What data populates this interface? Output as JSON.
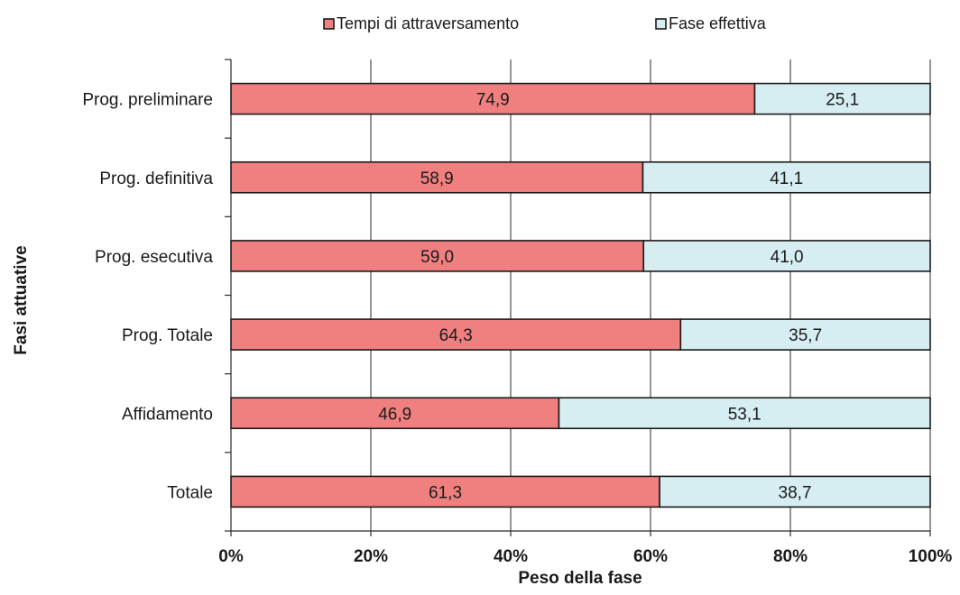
{
  "chart_data": {
    "type": "bar",
    "orientation": "horizontal",
    "stacked": true,
    "title": "",
    "xlabel": "Peso della fase",
    "ylabel": "Fasi attuative",
    "categories": [
      "Prog. preliminare",
      "Prog. definitiva",
      "Prog. esecutiva",
      "Prog. Totale",
      "Affidamento",
      "Totale"
    ],
    "series": [
      {
        "name": "Tempi di attraversamento",
        "color": "#f08080",
        "values": [
          74.9,
          58.9,
          59.0,
          64.3,
          46.9,
          61.3
        ],
        "labels": [
          "74,9",
          "58,9",
          "59,0",
          "64,3",
          "46,9",
          "61,3"
        ]
      },
      {
        "name": "Fase effettiva",
        "color": "#d6eef2",
        "values": [
          25.1,
          41.1,
          41.0,
          35.7,
          53.1,
          38.7
        ],
        "labels": [
          "25,1",
          "41,1",
          "41,0",
          "35,7",
          "53,1",
          "38,7"
        ]
      }
    ],
    "xlim": [
      0,
      100
    ],
    "xticks": [
      0,
      20,
      40,
      60,
      80,
      100
    ],
    "xtick_labels": [
      "0%",
      "20%",
      "40%",
      "60%",
      "80%",
      "100%"
    ],
    "grid": "vertical",
    "legend_position": "top-center"
  }
}
